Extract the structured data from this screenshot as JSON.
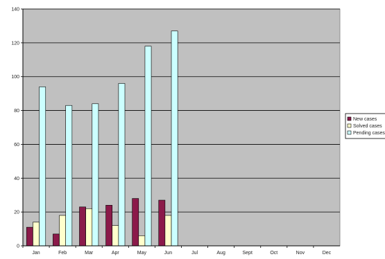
{
  "chart_data": {
    "type": "bar",
    "title": "",
    "xlabel": "",
    "ylabel": "",
    "categories": [
      "Jan",
      "Feb",
      "Mar",
      "Apr",
      "May",
      "Jun",
      "Jul",
      "Aug",
      "Sept",
      "Oct",
      "Nov",
      "Dec"
    ],
    "series": [
      {
        "name": "New cases",
        "color": "#8b1a4a",
        "values": [
          11,
          7,
          23,
          24,
          28,
          27,
          null,
          null,
          null,
          null,
          null,
          null
        ]
      },
      {
        "name": "Solved cases",
        "color": "#ffffcc",
        "values": [
          14,
          18,
          22,
          12,
          6,
          18,
          null,
          null,
          null,
          null,
          null,
          null
        ]
      },
      {
        "name": "Pending cases",
        "color": "#ccffff",
        "values": [
          94,
          83,
          84,
          96,
          118,
          127,
          null,
          null,
          null,
          null,
          null,
          null
        ]
      }
    ],
    "ylim": [
      0,
      140
    ],
    "yticks": [
      0,
      20,
      40,
      60,
      80,
      100,
      120,
      140
    ],
    "grid": true,
    "plot_background": "#c0c0c0",
    "legend_position": "right"
  }
}
